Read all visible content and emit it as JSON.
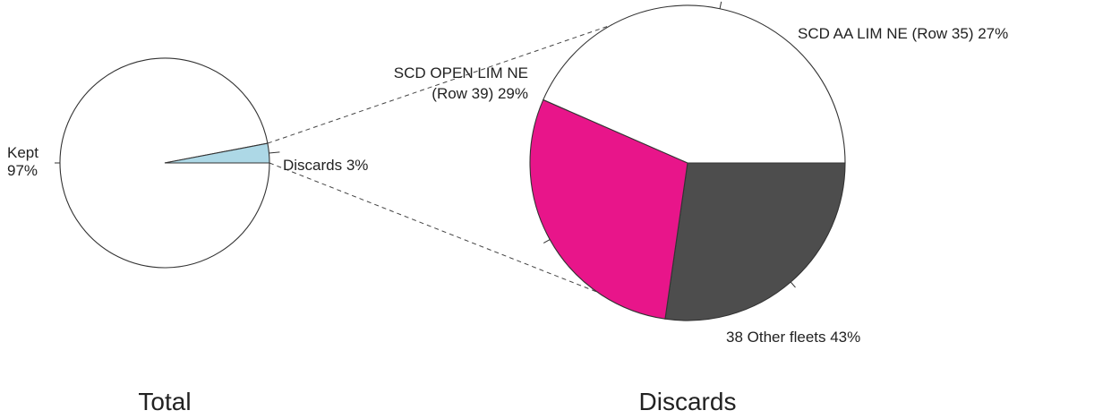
{
  "chart_data": [
    {
      "type": "pie",
      "title": "Total",
      "slices": [
        {
          "label": "Kept",
          "percent_label": "97%",
          "value": 97,
          "color": "#ffffff"
        },
        {
          "label": "Discards",
          "percent_label": "3%",
          "value": 3,
          "color": "#add8e6"
        }
      ]
    },
    {
      "type": "pie",
      "title": "Discards",
      "slices": [
        {
          "label": "SCD AA LIM NE (Row 35)",
          "percent_label": "27%",
          "value": 27,
          "color": "#4d4d4d"
        },
        {
          "label": "SCD OPEN LIM NE (Row 39)",
          "percent_label": "29%",
          "value": 29,
          "color": "#e8158a"
        },
        {
          "label": "38 Other fleets",
          "percent_label": "43%",
          "value": 43,
          "color": "#ffffff"
        }
      ]
    }
  ]
}
